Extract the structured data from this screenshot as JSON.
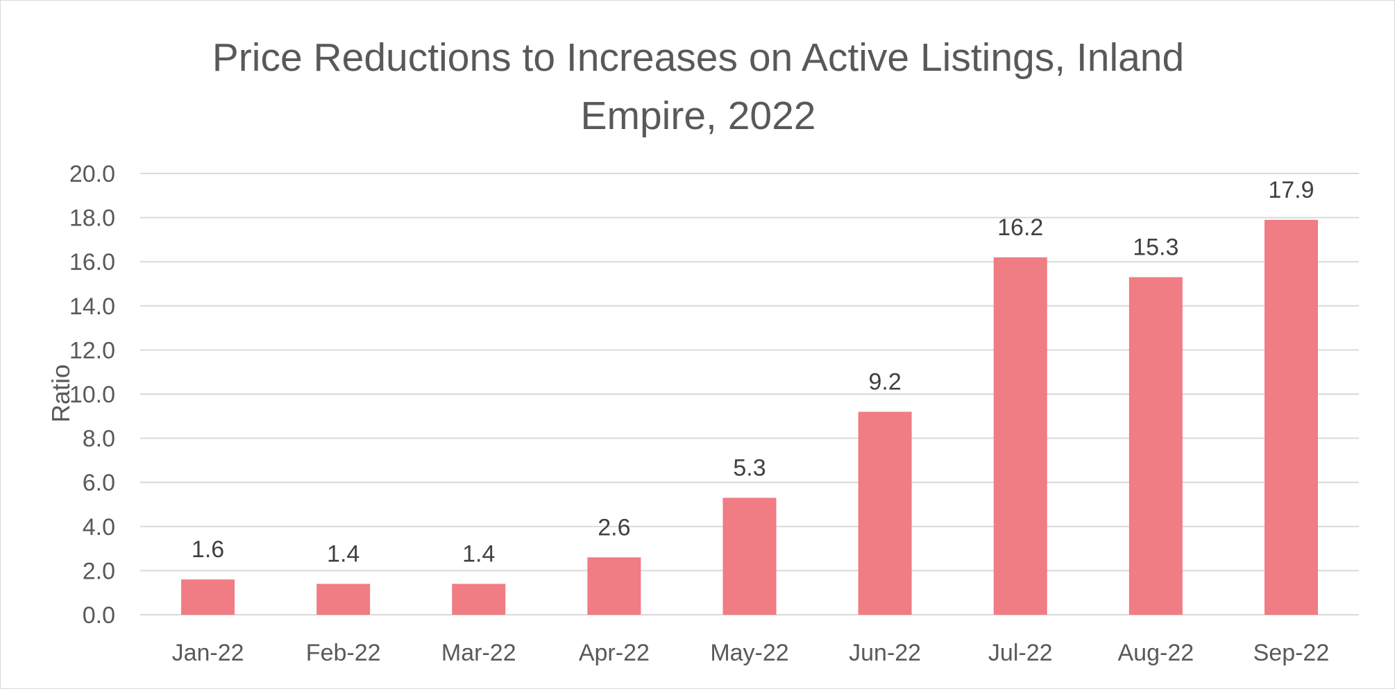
{
  "chart_data": {
    "type": "bar",
    "title": "Price Reductions to Increases on Active Listings, Inland Empire, 2022",
    "xlabel": "",
    "ylabel": "Ratio",
    "categories": [
      "Jan-22",
      "Feb-22",
      "Mar-22",
      "Apr-22",
      "May-22",
      "Jun-22",
      "Jul-22",
      "Aug-22",
      "Sep-22"
    ],
    "values": [
      1.6,
      1.4,
      1.4,
      2.6,
      5.3,
      9.2,
      16.2,
      15.3,
      17.9
    ],
    "data_labels": [
      "1.6",
      "1.4",
      "1.4",
      "2.6",
      "5.3",
      "9.2",
      "16.2",
      "15.3",
      "17.9"
    ],
    "ylim": [
      0,
      20
    ],
    "yticks": [
      "0.0",
      "2.0",
      "4.0",
      "6.0",
      "8.0",
      "10.0",
      "12.0",
      "14.0",
      "16.0",
      "18.0",
      "20.0"
    ],
    "grid": true,
    "legend": "none",
    "bar_color": "#F07C84",
    "grid_color": "#d9d9d9",
    "text_color": "#595959"
  }
}
